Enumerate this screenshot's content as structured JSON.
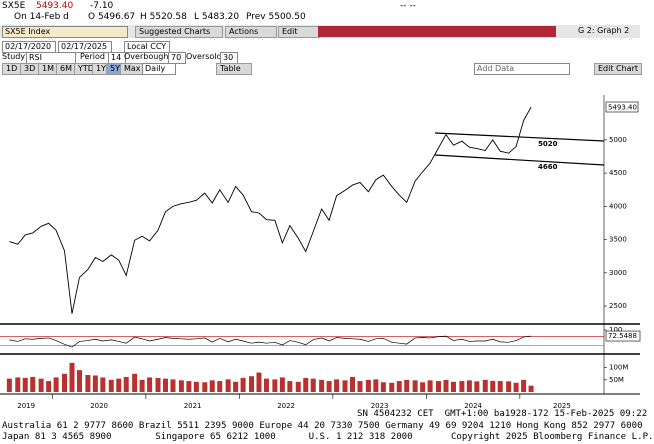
{
  "header": {
    "ticker": "SX5E",
    "last": "5493.40",
    "change": "-7.10",
    "status": "-- --",
    "date": "On 14-Feb d",
    "open": "O 5496.67",
    "high": "H 5520.58",
    "low": "L 5483.20",
    "prev": "Prev 5500.50"
  },
  "toolbar": {
    "security": "SX5E Index",
    "suggested": "Suggested Charts",
    "actions": "Actions",
    "edit": "Edit",
    "graph": "G 2: Graph 2",
    "start": "02/17/2020",
    "end": "02/17/2025",
    "currency": "Local CCY",
    "study_label": "Study",
    "study": "RSI",
    "period_label": "Period",
    "period": 14,
    "overbought_label": "Overbought",
    "overbought": 70,
    "oversold_label": "Oversold",
    "oversold": 30,
    "ranges": [
      "1D",
      "3D",
      "1M",
      "6M",
      "YTD",
      "1Y",
      "5Y",
      "Max"
    ],
    "frequency": "Daily",
    "table": "Table",
    "add_data": "Add Data",
    "edit_chart": "Edit Chart"
  },
  "chart_data": [
    {
      "type": "line",
      "color": "#000000",
      "x": [
        2019.54,
        2019.63,
        2019.71,
        2019.79,
        2019.88,
        2019.96,
        2020.04,
        2020.13,
        2020.21,
        2020.29,
        2020.38,
        2020.46,
        2020.54,
        2020.63,
        2020.71,
        2020.79,
        2020.88,
        2020.96,
        2021.04,
        2021.13,
        2021.21,
        2021.29,
        2021.38,
        2021.46,
        2021.54,
        2021.63,
        2021.71,
        2021.79,
        2021.88,
        2021.96,
        2022.04,
        2022.13,
        2022.21,
        2022.29,
        2022.38,
        2022.46,
        2022.54,
        2022.63,
        2022.71,
        2022.79,
        2022.88,
        2022.96,
        2023.04,
        2023.13,
        2023.21,
        2023.29,
        2023.38,
        2023.46,
        2023.54,
        2023.63,
        2023.71,
        2023.79,
        2023.88,
        2023.96,
        2024.04,
        2024.13,
        2024.21,
        2024.29,
        2024.38,
        2024.46,
        2024.54,
        2024.63,
        2024.71,
        2024.79,
        2024.88,
        2024.96,
        2025.04,
        2025.12
      ],
      "values": [
        3470,
        3430,
        3570,
        3600,
        3700,
        3745,
        3640,
        3330,
        2385,
        2930,
        3050,
        3230,
        3170,
        3270,
        3190,
        2960,
        3490,
        3550,
        3480,
        3640,
        3920,
        4000,
        4040,
        4060,
        4090,
        4200,
        4050,
        4250,
        4060,
        4300,
        4170,
        3920,
        3900,
        3800,
        3790,
        3450,
        3710,
        3520,
        3320,
        3620,
        3960,
        3790,
        4160,
        4240,
        4320,
        4360,
        4220,
        4400,
        4470,
        4300,
        4170,
        4060,
        4380,
        4520,
        4650,
        4880,
        5080,
        4920,
        4980,
        4890,
        4870,
        4840,
        5000,
        4830,
        4800,
        4900,
        5290,
        5493.4
      ],
      "xlim": [
        2019.44,
        2025.9
      ],
      "xticks": [
        2019,
        2020,
        2021,
        2022,
        2023,
        2024,
        2025
      ],
      "ylim": [
        2260,
        5600
      ],
      "yticks": [
        2500,
        3000,
        3500,
        4000,
        4500,
        5000
      ],
      "grid": false,
      "annotations": [
        "5020",
        "4660"
      ]
    },
    {
      "type": "line",
      "color": "#000000",
      "x": [
        2019.54,
        2019.63,
        2019.71,
        2019.79,
        2019.88,
        2019.96,
        2020.04,
        2020.13,
        2020.21,
        2020.29,
        2020.38,
        2020.46,
        2020.54,
        2020.63,
        2020.71,
        2020.79,
        2020.88,
        2020.96,
        2021.04,
        2021.13,
        2021.21,
        2021.29,
        2021.38,
        2021.46,
        2021.54,
        2021.63,
        2021.71,
        2021.79,
        2021.88,
        2021.96,
        2022.04,
        2022.13,
        2022.21,
        2022.29,
        2022.38,
        2022.46,
        2022.54,
        2022.63,
        2022.71,
        2022.79,
        2022.88,
        2022.96,
        2023.04,
        2023.13,
        2023.21,
        2023.29,
        2023.38,
        2023.46,
        2023.54,
        2023.63,
        2023.71,
        2023.79,
        2023.88,
        2023.96,
        2024.04,
        2024.13,
        2024.21,
        2024.29,
        2024.38,
        2024.46,
        2024.54,
        2024.63,
        2024.71,
        2024.79,
        2024.88,
        2024.96,
        2025.04,
        2025.12
      ],
      "values": [
        55,
        48,
        60,
        58,
        62,
        64,
        52,
        35,
        22,
        48,
        52,
        58,
        50,
        55,
        48,
        40,
        68,
        60,
        50,
        58,
        66,
        62,
        60,
        58,
        60,
        64,
        45,
        62,
        46,
        58,
        50,
        40,
        45,
        40,
        44,
        32,
        52,
        44,
        33,
        56,
        64,
        50,
        66,
        62,
        60,
        58,
        48,
        60,
        62,
        44,
        40,
        36,
        64,
        66,
        64,
        70,
        72,
        52,
        58,
        48,
        50,
        50,
        58,
        46,
        44,
        52,
        68,
        72.5488
      ],
      "xlim": [
        2019.44,
        2025.9
      ],
      "ylim": [
        0,
        100
      ],
      "yticks": [
        100
      ]
    },
    {
      "type": "bar",
      "color": "#b8312f",
      "x": [
        2019.54,
        2019.63,
        2019.71,
        2019.79,
        2019.88,
        2019.96,
        2020.04,
        2020.13,
        2020.21,
        2020.29,
        2020.38,
        2020.46,
        2020.54,
        2020.63,
        2020.71,
        2020.79,
        2020.88,
        2020.96,
        2021.04,
        2021.13,
        2021.21,
        2021.29,
        2021.38,
        2021.46,
        2021.54,
        2021.63,
        2021.71,
        2021.79,
        2021.88,
        2021.96,
        2022.04,
        2022.13,
        2022.21,
        2022.29,
        2022.38,
        2022.46,
        2022.54,
        2022.63,
        2022.71,
        2022.79,
        2022.88,
        2022.96,
        2023.04,
        2023.13,
        2023.21,
        2023.29,
        2023.38,
        2023.46,
        2023.54,
        2023.63,
        2023.71,
        2023.79,
        2023.88,
        2023.96,
        2024.04,
        2024.13,
        2024.21,
        2024.29,
        2024.38,
        2024.46,
        2024.54,
        2024.63,
        2024.71,
        2024.79,
        2024.88,
        2024.96,
        2025.04,
        2025.12
      ],
      "values": [
        55,
        60,
        58,
        62,
        55,
        45,
        60,
        75,
        120,
        90,
        70,
        68,
        60,
        50,
        55,
        62,
        75,
        50,
        60,
        58,
        55,
        52,
        48,
        45,
        42,
        40,
        48,
        45,
        52,
        42,
        58,
        65,
        80,
        55,
        52,
        60,
        45,
        42,
        58,
        55,
        50,
        45,
        52,
        48,
        62,
        45,
        50,
        52,
        40,
        38,
        45,
        50,
        48,
        40,
        48,
        45,
        50,
        42,
        45,
        48,
        44,
        50,
        46,
        45,
        44,
        38,
        50,
        26
      ],
      "xlim": [
        2019.44,
        2025.9
      ],
      "ylim": [
        0,
        140
      ],
      "yticks": [
        {
          "value": 50,
          "label": "50M"
        },
        {
          "value": 100,
          "label": "100M"
        }
      ]
    }
  ],
  "footer": {
    "session": "SN 4504232 CET  GMT+1:00 ba1928-172 15-Feb-2025 09:22",
    "line1": "Australia 61 2 9777 8600 Brazil 5511 2395 9000 Europe 44 20 7330 7500 Germany 49 69 9204 1210 Hong Kong 852 2977 6000",
    "line2": "Japan 81 3 4565 8900        Singapore 65 6212 1000      U.S. 1 212 318 2000       Copyright 2025 Bloomberg Finance L.P."
  }
}
